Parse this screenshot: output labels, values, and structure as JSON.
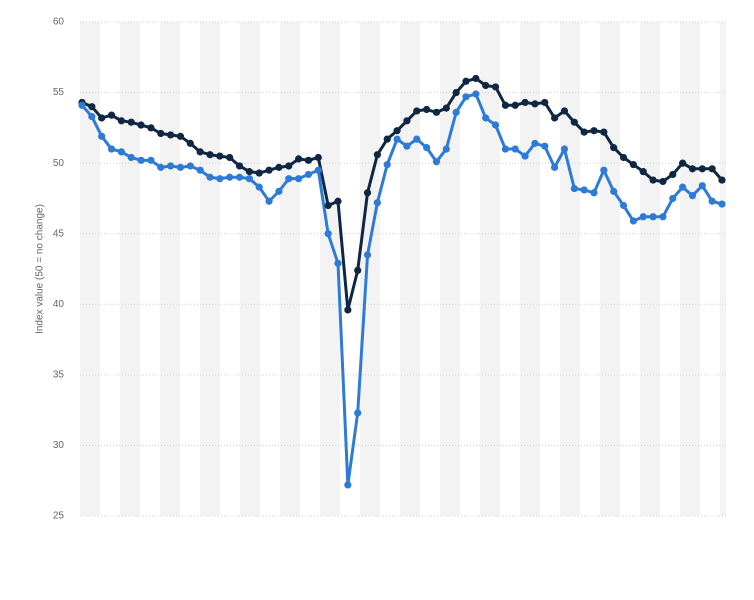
{
  "chart_data": {
    "type": "line",
    "y_label": "Index value (50 = no change)",
    "categories": [
      null,
      null,
      null,
      null,
      null,
      null,
      null,
      null,
      null,
      null,
      null,
      null,
      null,
      null,
      null,
      null,
      null,
      null,
      null,
      null,
      null,
      null,
      null,
      null,
      null,
      null,
      null,
      null,
      null,
      null,
      null,
      null,
      null,
      null,
      null,
      null,
      null,
      null,
      null,
      null,
      null,
      null,
      null,
      null,
      null,
      null,
      null,
      null,
      null,
      null,
      null,
      null,
      null,
      null,
      null,
      null,
      null,
      null,
      null,
      null,
      null,
      null,
      null,
      null,
      null,
      null
    ],
    "series": [
      {
        "color": "#0f2742",
        "values": [
          54.3,
          54.0,
          53.2,
          53.4,
          53.0,
          52.9,
          52.7,
          52.5,
          52.1,
          52.0,
          51.9,
          51.4,
          50.8,
          50.6,
          50.5,
          50.4,
          49.8,
          49.4,
          49.3,
          49.5,
          49.7,
          49.8,
          50.3,
          50.2,
          50.4,
          47.0,
          47.3,
          39.6,
          42.4,
          47.9,
          50.6,
          51.7,
          52.3,
          53.0,
          53.7,
          53.8,
          53.6,
          53.9,
          55.0,
          55.8,
          56.0,
          55.5,
          55.4,
          54.1,
          54.1,
          54.3,
          54.2,
          54.3,
          53.2,
          53.7,
          52.9,
          52.2,
          52.3,
          52.2,
          51.1,
          50.4,
          49.9,
          49.4,
          48.8,
          48.7,
          49.2,
          50.0,
          49.6,
          49.6,
          49.6,
          48.8
        ]
      },
      {
        "color": "#2e7bd6",
        "values": [
          54.1,
          53.3,
          51.9,
          51.0,
          50.8,
          50.4,
          50.2,
          50.2,
          49.7,
          49.8,
          49.7,
          49.8,
          49.5,
          49.0,
          48.9,
          49.0,
          49.0,
          48.9,
          48.3,
          47.3,
          48.0,
          48.9,
          48.9,
          49.2,
          49.5,
          45.0,
          42.9,
          27.2,
          32.3,
          43.5,
          47.2,
          49.9,
          51.7,
          51.2,
          51.7,
          51.1,
          50.1,
          51.0,
          53.6,
          54.7,
          54.9,
          53.2,
          52.7,
          51.0,
          51.0,
          50.5,
          51.4,
          51.2,
          49.7,
          51.0,
          48.2,
          48.1,
          47.9,
          49.5,
          48.0,
          47.0,
          45.9,
          46.2,
          46.2,
          46.2,
          47.5,
          48.3,
          47.7,
          48.4,
          47.3,
          47.1
        ]
      }
    ],
    "ylim": [
      25,
      60
    ],
    "yticks": [
      25,
      30,
      35,
      40,
      45,
      50,
      55,
      60
    ],
    "grid": true
  }
}
